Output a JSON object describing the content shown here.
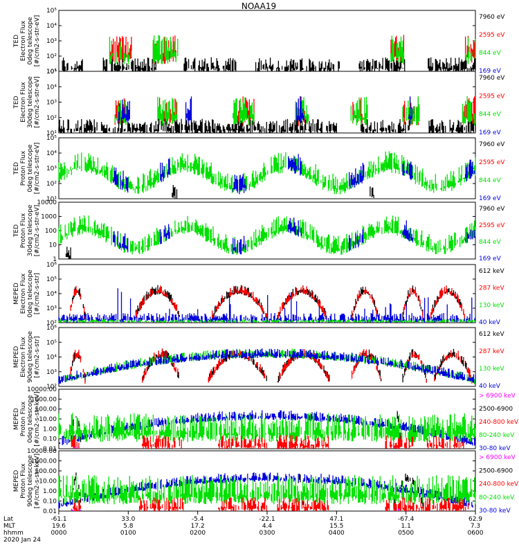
{
  "title": "NOAA19",
  "colors": {
    "black": "#000000",
    "red": "#ff0000",
    "green": "#00e000",
    "blue": "#0000dd",
    "magenta": "#ff00ff"
  },
  "time_axis": {
    "hhmm_ticks": [
      "0000",
      "0100",
      "0200",
      "0300",
      "0400",
      "0500",
      "0600"
    ],
    "lat_ticks": [
      "-61.1",
      "33.0",
      "-5.4",
      "-22.1",
      "47.1",
      "-67.4",
      "62.9"
    ],
    "mlt_ticks": [
      "19.6",
      "5.8",
      "17.2",
      "4.4",
      "15.5",
      "1.1",
      "7.3"
    ],
    "row_labels": [
      "Lat",
      "MLT",
      "hhmm"
    ],
    "date": "2020 Jan 24",
    "range_hours": [
      0,
      6
    ]
  },
  "chart_data": [
    {
      "type": "scatter",
      "scale": "log",
      "ylabel": [
        "TED",
        "Electron Flux",
        "0deg telescope",
        "[#/cm2-s-str-eV]"
      ],
      "yticks": [
        "10¹",
        "10²",
        "10³",
        "10⁴",
        "10⁵"
      ],
      "ylim_exp": [
        0,
        5
      ],
      "series": [
        {
          "name": "7960 eV",
          "color": "black",
          "flux": "low",
          "active": [
            [
              0.05,
              0.35
            ],
            [
              0.63,
              1.4
            ],
            [
              1.8,
              2.55
            ],
            [
              2.82,
              4.05
            ],
            [
              4.32,
              5.0
            ],
            [
              5.3,
              6.0
            ]
          ]
        },
        {
          "name": "2595 eV",
          "color": "red",
          "flux": "med",
          "active": [
            [
              0.72,
              1.05
            ],
            [
              1.35,
              1.72
            ],
            [
              4.78,
              4.97
            ],
            [
              5.85,
              6.0
            ]
          ]
        },
        {
          "name": "844 eV",
          "color": "green",
          "flux": "med",
          "active": [
            [
              0.72,
              1.05
            ],
            [
              1.35,
              1.72
            ],
            [
              4.78,
              4.97
            ],
            [
              5.85,
              6.0
            ]
          ]
        },
        {
          "name": "169 eV",
          "color": "blue",
          "flux": "low",
          "active": []
        }
      ]
    },
    {
      "type": "scatter",
      "scale": "log",
      "ylabel": [
        "TED",
        "Electron Flux",
        "30deg telescope",
        "[#/cm2-s-str-eV]"
      ],
      "yticks": [
        "10¹",
        "10²",
        "10³",
        "10⁴",
        "10⁵"
      ],
      "ylim_exp": [
        0,
        5
      ],
      "series": [
        {
          "name": "7960 eV",
          "color": "black",
          "flux": "low",
          "active": [
            [
              0.0,
              0.55
            ],
            [
              0.6,
              4.0
            ],
            [
              4.35,
              5.05
            ],
            [
              5.3,
              6.0
            ]
          ]
        },
        {
          "name": "2595 eV",
          "color": "red",
          "flux": "med",
          "active": [
            [
              0.8,
              0.98
            ],
            [
              1.42,
              1.7
            ],
            [
              2.5,
              2.82
            ],
            [
              3.4,
              3.6
            ],
            [
              4.2,
              4.45
            ],
            [
              4.95,
              5.2
            ],
            [
              5.8,
              6.0
            ]
          ]
        },
        {
          "name": "844 eV",
          "color": "green",
          "flux": "med",
          "active": [
            [
              0.8,
              0.98
            ],
            [
              1.42,
              1.7
            ],
            [
              2.5,
              2.82
            ],
            [
              3.4,
              3.6
            ],
            [
              4.2,
              4.45
            ],
            [
              4.95,
              5.2
            ],
            [
              5.8,
              6.0
            ]
          ]
        },
        {
          "name": "169 eV",
          "color": "blue",
          "flux": "med",
          "active": [
            [
              0.85,
              1.05
            ],
            [
              1.82,
              1.92
            ],
            [
              3.42,
              3.58
            ],
            [
              5.02,
              5.12
            ]
          ]
        }
      ]
    },
    {
      "type": "scatter",
      "scale": "log",
      "ylabel": [
        "TED",
        "Proton Flux",
        "0deg telescope",
        "[#/cm2-s-str-eV]"
      ],
      "yticks": [
        "10¹",
        "10²",
        "10³",
        "10⁴",
        "10⁵"
      ],
      "ylim_exp": [
        0,
        5
      ],
      "series": [
        {
          "name": "7960 eV",
          "color": "black",
          "flux": "low",
          "active": [
            [
              1.62,
              1.7
            ],
            [
              4.48,
              4.56
            ]
          ]
        },
        {
          "name": "2595 eV",
          "color": "red",
          "flux": "low",
          "active": []
        },
        {
          "name": "844 eV",
          "color": "green",
          "flux": "high",
          "active": [
            [
              0.0,
              6.0
            ]
          ]
        },
        {
          "name": "169 eV",
          "color": "blue",
          "flux": "high",
          "active": [
            [
              0.78,
              1.0
            ],
            [
              1.45,
              1.6
            ],
            [
              2.5,
              2.7
            ],
            [
              3.3,
              3.5
            ],
            [
              4.18,
              4.4
            ],
            [
              4.95,
              5.1
            ],
            [
              5.85,
              6.0
            ]
          ]
        }
      ]
    },
    {
      "type": "scatter",
      "scale": "log",
      "ylabel": [
        "TED",
        "Proton Flux",
        "30deg telescope",
        "[#/cm2-s-str-eV]"
      ],
      "yticks": [
        "1",
        "10",
        "100",
        "1000",
        "10000"
      ],
      "ylim_exp": [
        0,
        4
      ],
      "series": [
        {
          "name": "7960 eV",
          "color": "black",
          "flux": "low",
          "active": [
            [
              0.1,
              0.18
            ]
          ]
        },
        {
          "name": "2595 eV",
          "color": "red",
          "flux": "low",
          "active": []
        },
        {
          "name": "844 eV",
          "color": "green",
          "flux": "high",
          "active": [
            [
              0.0,
              6.0
            ]
          ]
        },
        {
          "name": "169 eV",
          "color": "blue",
          "flux": "high",
          "active": [
            [
              0.78,
              1.0
            ],
            [
              1.45,
              1.6
            ],
            [
              2.5,
              2.7
            ],
            [
              3.3,
              3.5
            ],
            [
              4.18,
              4.4
            ],
            [
              4.95,
              5.1
            ],
            [
              5.85,
              6.0
            ]
          ]
        }
      ]
    },
    {
      "type": "scatter",
      "scale": "log",
      "ylabel": [
        "MEPED",
        "Electron Flux",
        "0deg telescope",
        "[#/cm2-s-str]"
      ],
      "yticks": [
        "10²",
        "10³",
        "10⁴",
        "10⁵",
        "10⁶"
      ],
      "ylim_exp": [
        2,
        6
      ],
      "series": [
        {
          "name": "612 keV",
          "color": "black",
          "flux": "hump",
          "active": [
            [
              0.15,
              0.38
            ],
            [
              1.1,
              1.75
            ],
            [
              2.2,
              3.0
            ],
            [
              3.15,
              3.85
            ],
            [
              4.22,
              4.6
            ],
            [
              4.95,
              5.25
            ],
            [
              5.35,
              5.85
            ]
          ]
        },
        {
          "name": "287 keV",
          "color": "red",
          "flux": "hump",
          "active": [
            [
              0.15,
              0.38
            ],
            [
              1.1,
              1.75
            ],
            [
              2.2,
              3.0
            ],
            [
              3.15,
              3.85
            ],
            [
              4.22,
              4.6
            ],
            [
              4.95,
              5.25
            ],
            [
              5.35,
              5.85
            ]
          ]
        },
        {
          "name": "130 keV",
          "color": "green",
          "flux": "base",
          "active": [
            [
              0.0,
              6.0
            ]
          ]
        },
        {
          "name": "40 keV",
          "color": "blue",
          "flux": "spiky",
          "active": [
            [
              0.0,
              6.0
            ]
          ]
        }
      ]
    },
    {
      "type": "scatter",
      "scale": "log",
      "ylabel": [
        "MEPED",
        "Electron Flux",
        "90deg telescope",
        "[#/cm2-s-str]"
      ],
      "yticks": [
        "10²",
        "10³",
        "10⁴",
        "10⁵",
        "10⁶"
      ],
      "ylim_exp": [
        2,
        6
      ],
      "series": [
        {
          "name": "612 keV",
          "color": "black",
          "flux": "hump",
          "active": [
            [
              0.15,
              0.38
            ],
            [
              1.2,
              1.75
            ],
            [
              2.15,
              3.0
            ],
            [
              3.15,
              3.9
            ],
            [
              4.2,
              4.65
            ],
            [
              4.95,
              5.3
            ],
            [
              5.4,
              5.95
            ]
          ]
        },
        {
          "name": "287 keV",
          "color": "red",
          "flux": "hump",
          "active": [
            [
              0.15,
              0.38
            ],
            [
              1.2,
              1.75
            ],
            [
              2.15,
              3.0
            ],
            [
              3.15,
              3.9
            ],
            [
              4.2,
              4.65
            ],
            [
              4.95,
              5.3
            ],
            [
              5.4,
              5.95
            ]
          ]
        },
        {
          "name": "130 keV",
          "color": "green",
          "flux": "hump",
          "active": [
            [
              0.0,
              6.0
            ]
          ]
        },
        {
          "name": "40 keV",
          "color": "blue",
          "flux": "hump",
          "active": [
            [
              0.0,
              6.0
            ]
          ]
        }
      ]
    },
    {
      "type": "scatter",
      "scale": "log",
      "ylabel": [
        "MEPED",
        "Proton Flux",
        "0deg telescope",
        "[#/cm2-s-str-keV]"
      ],
      "yticks": [
        "0.01",
        "0.10",
        "1.00",
        "10.00",
        "100.00",
        "1000.00",
        "10000.00"
      ],
      "ylim_exp": [
        -2,
        4
      ],
      "series": [
        {
          "name": "> 6900 keV",
          "color": "magenta",
          "flux": "base",
          "active": [
            [
              0.18,
              0.32
            ],
            [
              4.82,
              4.92
            ]
          ]
        },
        {
          "name": "2500-6900",
          "color": "black",
          "flux": "hump",
          "active": [
            [
              0.18,
              0.32
            ],
            [
              4.82,
              4.92
            ]
          ]
        },
        {
          "name": "240-800 keV",
          "color": "red",
          "flux": "low",
          "active": [
            [
              0.18,
              0.32
            ],
            [
              1.15,
              1.8
            ],
            [
              2.3,
              3.0
            ],
            [
              3.15,
              3.9
            ],
            [
              4.7,
              5.1
            ],
            [
              5.3,
              5.9
            ]
          ]
        },
        {
          "name": "80-240 keV",
          "color": "green",
          "flux": "med",
          "active": [
            [
              0.0,
              6.0
            ]
          ]
        },
        {
          "name": "30-80 keV",
          "color": "blue",
          "flux": "hump",
          "active": [
            [
              0.0,
              6.0
            ]
          ]
        }
      ]
    },
    {
      "type": "scatter",
      "scale": "log",
      "ylabel": [
        "MEPED",
        "Proton Flux",
        "90deg telescope",
        "[#/cm2-s-str-keV]"
      ],
      "yticks": [
        "0.01",
        "0.10",
        "1.00",
        "10.00",
        "100.00",
        "1000.00",
        "10000.00"
      ],
      "ylim_exp": [
        -2,
        4
      ],
      "series": [
        {
          "name": "> 6900 keV",
          "color": "magenta",
          "flux": "base",
          "active": [
            [
              0.18,
              0.32
            ],
            [
              4.82,
              4.92
            ]
          ]
        },
        {
          "name": "2500-6900",
          "color": "black",
          "flux": "hump",
          "active": [
            [
              0.18,
              0.32
            ],
            [
              3.42,
              3.52
            ],
            [
              4.82,
              5.25
            ]
          ]
        },
        {
          "name": "240-800 keV",
          "color": "red",
          "flux": "low",
          "active": [
            [
              0.18,
              0.32
            ],
            [
              1.15,
              1.8
            ],
            [
              2.3,
              3.0
            ],
            [
              3.15,
              3.9
            ],
            [
              4.7,
              5.3
            ],
            [
              5.3,
              5.9
            ]
          ]
        },
        {
          "name": "80-240 keV",
          "color": "green",
          "flux": "med",
          "active": [
            [
              0.0,
              6.0
            ]
          ]
        },
        {
          "name": "30-80 keV",
          "color": "blue",
          "flux": "hump",
          "active": [
            [
              0.0,
              6.0
            ]
          ]
        }
      ]
    }
  ]
}
